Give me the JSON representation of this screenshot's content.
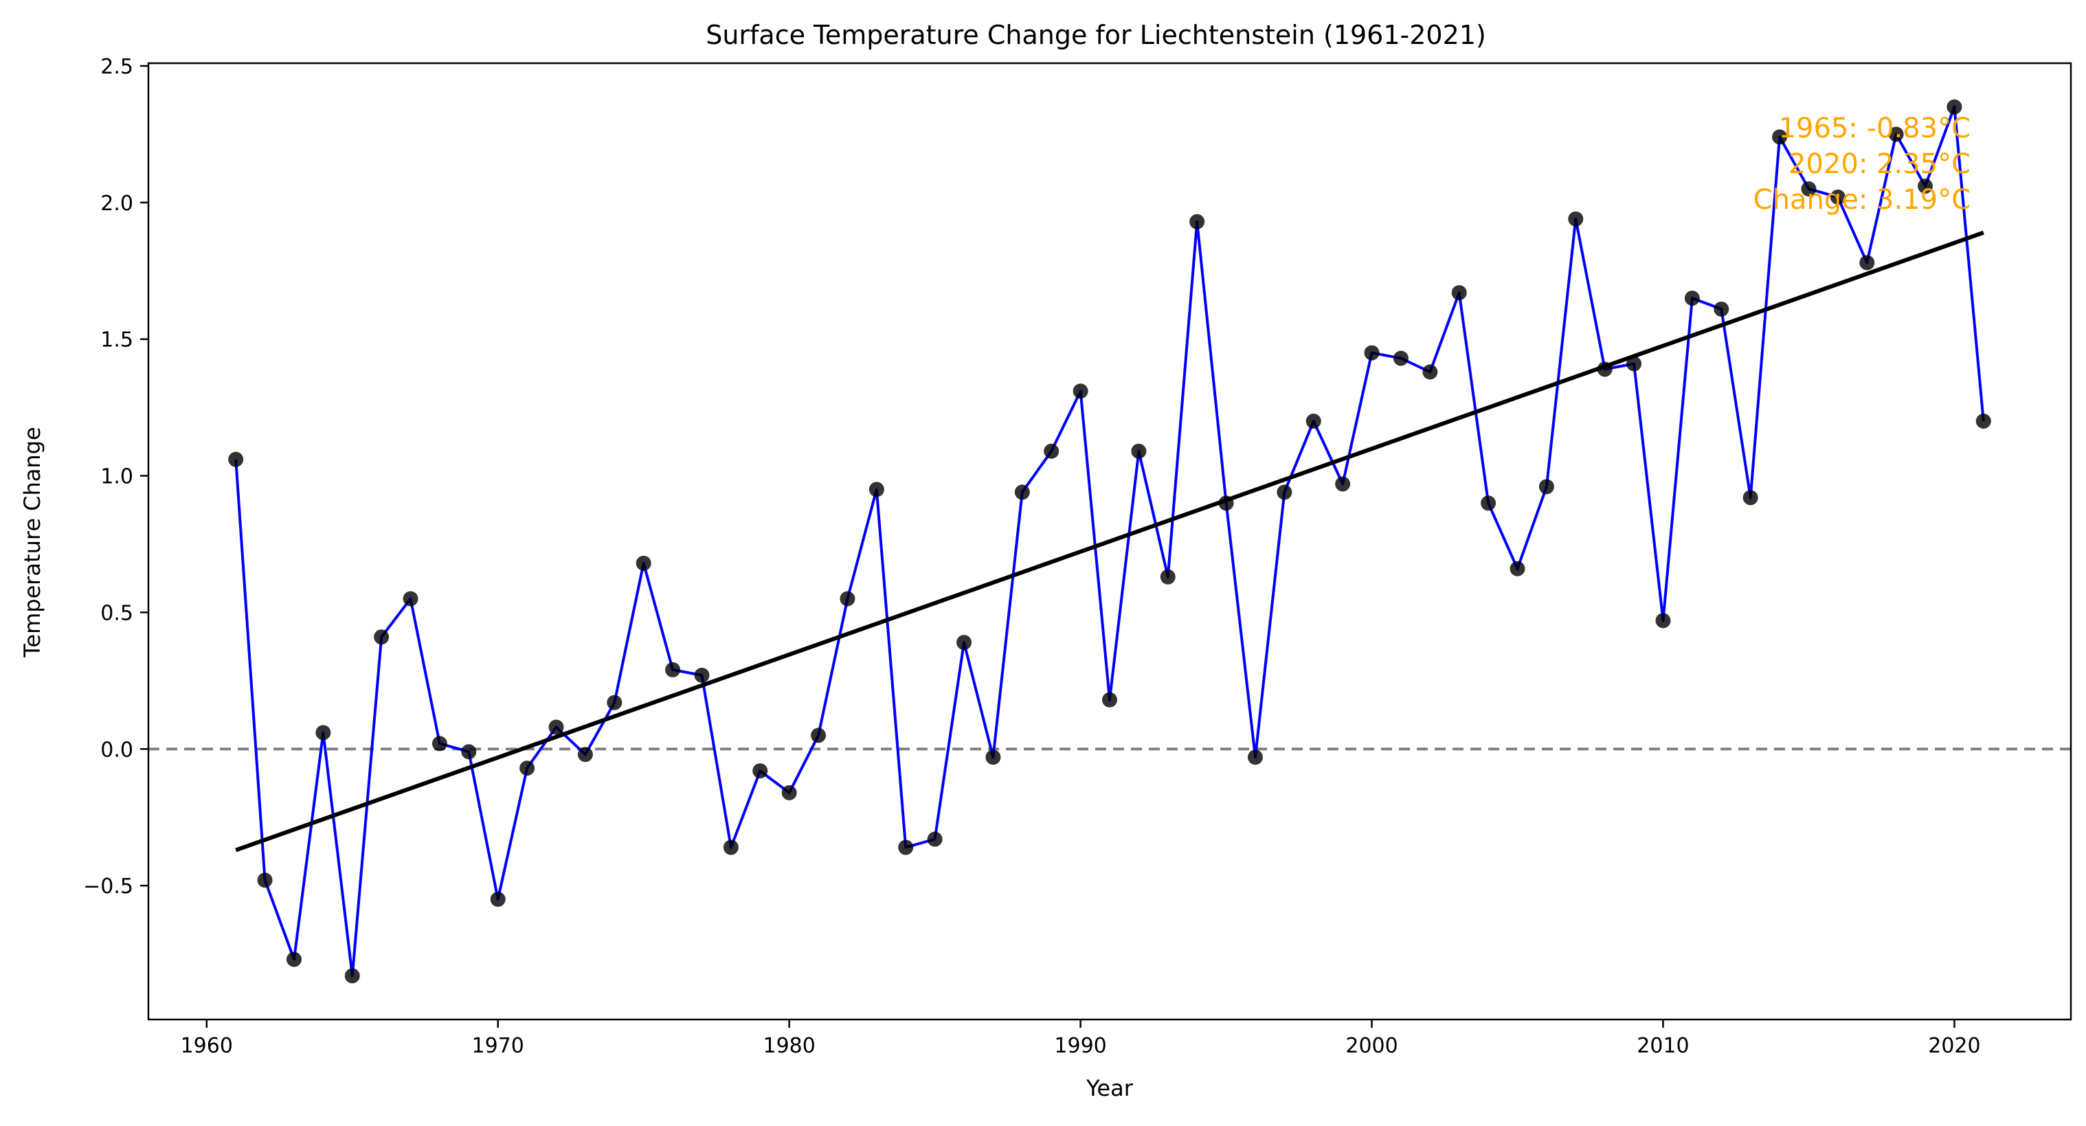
{
  "chart_data": {
    "type": "line",
    "title": "Surface Temperature Change for Liechtenstein (1961-2021)",
    "xlabel": "Year",
    "ylabel": "Temperature Change",
    "xlim": [
      1958,
      2024
    ],
    "ylim": [
      -0.99,
      2.51
    ],
    "x_ticks": [
      1960,
      1970,
      1980,
      1990,
      2000,
      2010,
      2020
    ],
    "y_ticks": [
      -0.5,
      0.0,
      0.5,
      1.0,
      1.5,
      2.0,
      2.5
    ],
    "y_tick_labels": [
      "−0.5",
      "0.0",
      "0.5",
      "1.0",
      "1.5",
      "2.0",
      "2.5"
    ],
    "grid": false,
    "colors": {
      "line": "#0000FF",
      "markers": "#000000",
      "trend": "#000000",
      "zero_line": "#808080",
      "annotation": "#FFA500"
    },
    "x": [
      1961,
      1962,
      1963,
      1964,
      1965,
      1966,
      1967,
      1968,
      1969,
      1970,
      1971,
      1972,
      1973,
      1974,
      1975,
      1976,
      1977,
      1978,
      1979,
      1980,
      1981,
      1982,
      1983,
      1984,
      1985,
      1986,
      1987,
      1988,
      1989,
      1990,
      1991,
      1992,
      1993,
      1994,
      1995,
      1996,
      1997,
      1998,
      1999,
      2000,
      2001,
      2002,
      2003,
      2004,
      2005,
      2006,
      2007,
      2008,
      2009,
      2010,
      2011,
      2012,
      2013,
      2014,
      2015,
      2016,
      2017,
      2018,
      2019,
      2020,
      2021
    ],
    "series": [
      {
        "values": [
          1.06,
          -0.48,
          -0.77,
          0.06,
          -0.83,
          0.41,
          0.55,
          0.02,
          -0.01,
          -0.55,
          -0.07,
          0.08,
          -0.02,
          0.17,
          0.68,
          0.29,
          0.27,
          -0.36,
          -0.08,
          -0.16,
          0.05,
          0.55,
          0.95,
          -0.36,
          -0.33,
          0.39,
          -0.03,
          0.94,
          1.09,
          1.31,
          0.18,
          1.09,
          0.63,
          1.93,
          0.9,
          -0.03,
          0.94,
          1.2,
          0.97,
          1.45,
          1.43,
          1.38,
          1.67,
          0.9,
          0.66,
          0.96,
          1.94,
          1.39,
          1.41,
          0.47,
          1.65,
          1.61,
          0.92,
          2.24,
          2.05,
          2.02,
          1.78,
          2.25,
          2.06,
          2.35,
          1.2
        ]
      }
    ],
    "trend": {
      "x": [
        1961,
        2021
      ],
      "y": [
        -0.37,
        1.89
      ]
    },
    "reference_line": 0.0,
    "annotation_lines": [
      "1965: -0.83°C",
      "2020: 2.35°C",
      "Change: 3.19°C"
    ]
  }
}
